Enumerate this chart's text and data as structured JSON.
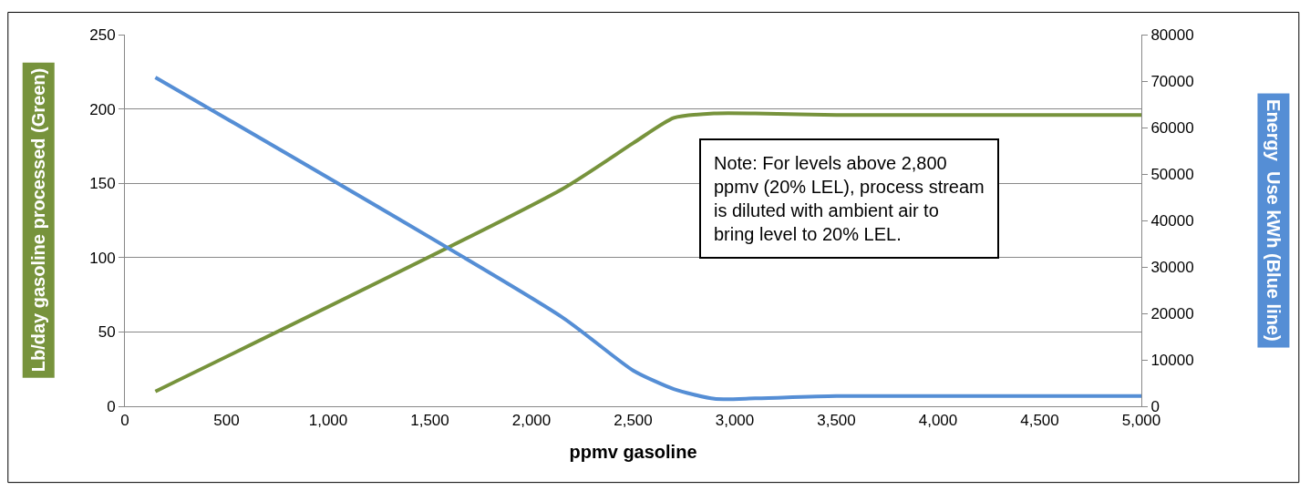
{
  "chart_data": {
    "type": "line",
    "xlabel": "ppmv gasoline",
    "ylabel": "Lb/day gasoline processed (Green)",
    "y2label": "Energy  Use kWh (Blue line)",
    "series": [
      {
        "color": "#77933c",
        "x": [
          150,
          2150,
          2500,
          2700,
          2900,
          3100,
          3500,
          5000
        ],
        "values": [
          10,
          146,
          177,
          194,
          197,
          197,
          196,
          196
        ]
      },
      {
        "color": "#558ed5",
        "axis": "y2",
        "x": [
          150,
          2150,
          2500,
          2700,
          2900,
          3100,
          3500,
          5000
        ],
        "values": [
          70800,
          19200,
          7700,
          3700,
          1600,
          1700,
          2200,
          2200
        ]
      }
    ],
    "xlim": [
      0,
      5000
    ],
    "xticks": [
      0,
      {
        "value": 500,
        "label": "500"
      },
      {
        "value": 1000,
        "label": "1,000"
      },
      {
        "value": 1500,
        "label": "1,500"
      },
      {
        "value": 2000,
        "label": "2,000"
      },
      {
        "value": 2500,
        "label": "2,500"
      },
      {
        "value": 3000,
        "label": "3,000"
      },
      {
        "value": 3500,
        "label": "3,500"
      },
      {
        "value": 4000,
        "label": "4,000"
      },
      {
        "value": 4500,
        "label": "4,500"
      },
      {
        "value": 5000,
        "label": "5,000"
      }
    ],
    "ylim": [
      0,
      250
    ],
    "yticks": [
      0,
      50,
      100,
      150,
      200,
      250
    ],
    "y2lim": [
      0,
      80000
    ],
    "y2ticks": [
      0,
      10000,
      20000,
      30000,
      40000,
      50000,
      60000,
      70000,
      80000
    ],
    "grid": "y",
    "legend": false,
    "line_style": "solid",
    "marker": "none",
    "annotations": [
      "Note: For levels above 2,800 ppmv (20% LEL), process stream is diluted with ambient air to bring level to 20% LEL."
    ]
  }
}
